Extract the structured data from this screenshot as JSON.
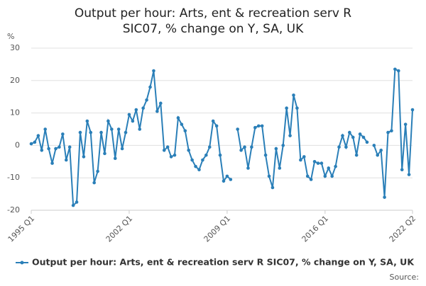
{
  "chart_data": {
    "type": "line",
    "title": "Output per hour: Arts, ent & recreation serv R SIC07, % change on Y, SA, UK",
    "y_label": "%",
    "source": "Source:",
    "categories": [
      "1995 Q1",
      null,
      null,
      null,
      null,
      null,
      null,
      null,
      null,
      null,
      null,
      null,
      null,
      null,
      null,
      null,
      null,
      null,
      null,
      null,
      null,
      null,
      null,
      null,
      null,
      null,
      null,
      null,
      "2002 Q1",
      null,
      null,
      null,
      null,
      null,
      null,
      null,
      null,
      null,
      null,
      null,
      null,
      null,
      null,
      null,
      null,
      null,
      null,
      null,
      null,
      null,
      null,
      null,
      null,
      null,
      null,
      null,
      "2009 Q1",
      null,
      null,
      null,
      null,
      null,
      null,
      null,
      null,
      null,
      null,
      null,
      null,
      null,
      null,
      null,
      null,
      null,
      null,
      null,
      null,
      null,
      null,
      null,
      null,
      null,
      null,
      null,
      "2016 Q1",
      null,
      null,
      null,
      null,
      null,
      null,
      null,
      null,
      null,
      null,
      null,
      null,
      null,
      null,
      null,
      null,
      null,
      null,
      null,
      null,
      null,
      null,
      null,
      null,
      "2022 Q2"
    ],
    "series": [
      {
        "name": "Output per hour: Arts, ent & recreation serv R SIC07, % change on Y, SA, UK",
        "color": "#2a7fb8",
        "values": [
          0.5,
          1,
          3,
          -1.5,
          5,
          -1,
          -5.5,
          -1,
          -0.5,
          3.5,
          -4.5,
          -0.5,
          -18.5,
          -17.5,
          4,
          -3.5,
          7.5,
          4,
          -11.5,
          -8,
          4,
          -2.5,
          7.5,
          5,
          -4,
          5,
          -1,
          4,
          9.5,
          7.5,
          11,
          5,
          11.5,
          14,
          18,
          23,
          10.5,
          13,
          -1.5,
          -0.5,
          -3.5,
          -3,
          8.5,
          6.5,
          4.5,
          -1.5,
          -4.5,
          -6.5,
          -7.5,
          -4.5,
          -3,
          -0.5,
          7.5,
          6,
          -3,
          -11,
          -9.5,
          -10.5,
          null,
          5,
          -1.5,
          -0.5,
          -7,
          -0.5,
          5.5,
          6,
          6,
          -3,
          -9.5,
          -13,
          -1,
          -7,
          0,
          11.5,
          3,
          15.5,
          11.5,
          -4.5,
          -3.5,
          -9.5,
          -10.5,
          -5,
          -5.5,
          -5.5,
          -9.5,
          -7,
          -9.5,
          -6.5,
          -0.5,
          3,
          -0.5,
          4,
          2.5,
          -3,
          3.5,
          2.5,
          1,
          null,
          0,
          -3,
          -1.5,
          -16,
          4,
          4.5,
          23.5,
          23,
          -7.5,
          6.5,
          -9,
          11
        ]
      }
    ],
    "ylim": [
      -20,
      30
    ],
    "yticks": [
      -20,
      -10,
      0,
      10,
      20,
      30
    ],
    "grid": true
  }
}
